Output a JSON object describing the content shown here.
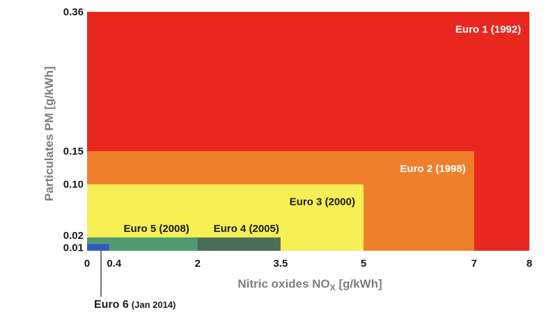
{
  "chart_data": {
    "type": "area",
    "title": "",
    "xlabel": "Nitric oxides NO",
    "xlabel_sub": "X",
    "xlabel_unit": " [g/kWh]",
    "ylabel": "Particulates PM [g/kWh]",
    "xlim": [
      0,
      8
    ],
    "ylim": [
      0,
      0.36
    ],
    "grid": false,
    "legend": "none",
    "x_ticks": [
      {
        "value": 0,
        "label": "0"
      },
      {
        "value": 0.4,
        "label": "0.4"
      },
      {
        "value": 2,
        "label": "2"
      },
      {
        "value": 3.5,
        "label": "3.5"
      },
      {
        "value": 5,
        "label": "5"
      },
      {
        "value": 7,
        "label": "7"
      },
      {
        "value": 8,
        "label": "8"
      }
    ],
    "y_ticks": [
      {
        "value": 0.01,
        "label": "0.01"
      },
      {
        "value": 0.02,
        "label": "0.02"
      },
      {
        "value": 0.1,
        "label": "0.10"
      },
      {
        "value": 0.15,
        "label": "0.15"
      },
      {
        "value": 0.36,
        "label": "0.36"
      }
    ],
    "series": [
      {
        "name": "Euro 1 (1992)",
        "nox": 8.0,
        "pm": 0.36,
        "color": "#e8281f",
        "label_color": "#ffffff",
        "label_anchor": "top-right"
      },
      {
        "name": "Euro 2 (1998)",
        "nox": 7.0,
        "pm": 0.15,
        "color": "#ef7f2a",
        "label_color": "#ffffff",
        "label_anchor": "top-right"
      },
      {
        "name": "Euro 3 (2000)",
        "nox": 5.0,
        "pm": 0.1,
        "color": "#f6ef55",
        "label_color": "#1a1a1a",
        "label_anchor": "top-right"
      },
      {
        "name": "Euro 4 (2005)",
        "nox": 3.5,
        "pm": 0.02,
        "color": "#4a6e58",
        "label_color": "#1a1a1a",
        "label_anchor": "above-right"
      },
      {
        "name": "Euro 5 (2008)",
        "nox": 2.0,
        "pm": 0.02,
        "color": "#4f9a72",
        "label_color": "#1a1a1a",
        "label_anchor": "above-left"
      },
      {
        "name": "Euro 6",
        "name_suffix": "(Jan 2014)",
        "nox": 0.4,
        "pm": 0.01,
        "color": "#2f5bbf",
        "label_color": "#1a1a1a",
        "label_anchor": "callout-below"
      }
    ]
  }
}
